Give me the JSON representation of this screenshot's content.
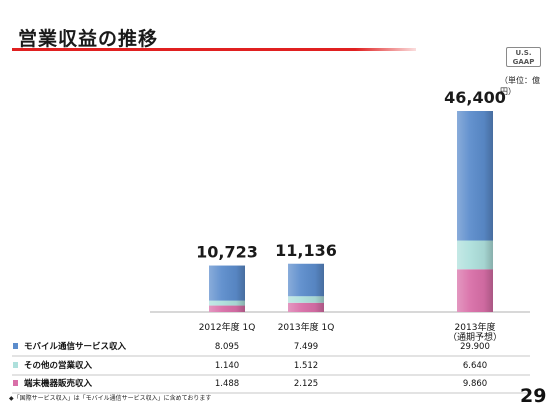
{
  "slide": {
    "title": "営業収益の推移",
    "badge_line1": "U.S.",
    "badge_line2": "GAAP",
    "unit": "（単位：億円）",
    "footnote": "◆「国際サービス収入」は「モバイル通信サービス収入」に含めております",
    "page_number": "29"
  },
  "chart_data": {
    "type": "bar",
    "stacked": true,
    "categories": [
      "2012年度 1Q",
      "2013年度 1Q",
      "2013年度\n（通期予想）"
    ],
    "totals": [
      "10,723",
      "11,136",
      "46,400"
    ],
    "series": [
      {
        "name": "モバイル通信サービス収入",
        "color": "#5b8ccc",
        "values": [
          8095,
          7499,
          29900
        ],
        "display": [
          "8.095",
          "7.499",
          "29.900"
        ]
      },
      {
        "name": "その他の営業収入",
        "color": "#aee0dc",
        "values": [
          1140,
          1512,
          6640
        ],
        "display": [
          "1.140",
          "1.512",
          "6.640"
        ]
      },
      {
        "name": "端末機器販売収入",
        "color": "#d96fa8",
        "values": [
          1488,
          2125,
          9860
        ],
        "display": [
          "1.488",
          "2.125",
          "9.860"
        ]
      }
    ]
  }
}
